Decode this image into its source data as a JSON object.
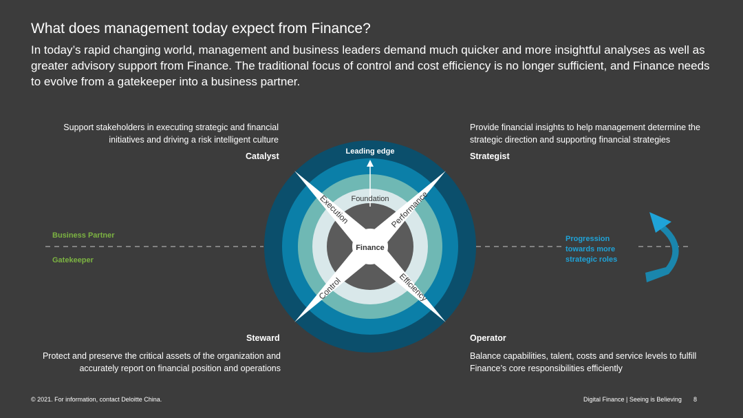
{
  "header": {
    "title": "What does management today expect from Finance?",
    "intro": "In today’s rapid changing world, management and business leaders demand much quicker and more insightful analyses as well as greater advisory support from Finance. The traditional focus of control and cost efficiency is no longer sufficient, and Finance needs to evolve from a gatekeeper into a business partner."
  },
  "quadrants": {
    "catalyst": {
      "title": "Catalyst",
      "text": "Support stakeholders in executing strategic and financial initiatives and driving a risk intelligent culture"
    },
    "strategist": {
      "title": "Strategist",
      "text": "Provide financial insights to help management determine the strategic direction and supporting financial strategies"
    },
    "steward": {
      "title": "Steward",
      "text": "Protect and preserve the critical assets of the organization and accurately report on financial position and operations"
    },
    "operator": {
      "title": "Operator",
      "text": "Balance capabilities, talent, costs and service levels to fulfill Finance’s core responsibilities efficiently"
    }
  },
  "diagram": {
    "center": "Finance",
    "foundation": "Foundation",
    "leading_edge": "Leading edge",
    "execution": "Execution",
    "performance": "Performance",
    "control": "Control",
    "efficiency": "Efficiency"
  },
  "roles": {
    "business_partner": "Business Partner",
    "gatekeeper": "Gatekeeper"
  },
  "progression": "Progression towards more strategic roles",
  "colors": {
    "ring_outer": "#0b4f6c",
    "ring_2": "#0b7fa8",
    "ring_3": "#6fb8b4",
    "ring_4": "#d9e8ea",
    "core": "#5b5b5b",
    "accent_blue": "#1fa3d8",
    "green": "#7cb342"
  },
  "footer": {
    "left": "© 2021. For information, contact Deloitte China.",
    "right": "Digital Finance | Seeing is Believing",
    "page": "8"
  }
}
